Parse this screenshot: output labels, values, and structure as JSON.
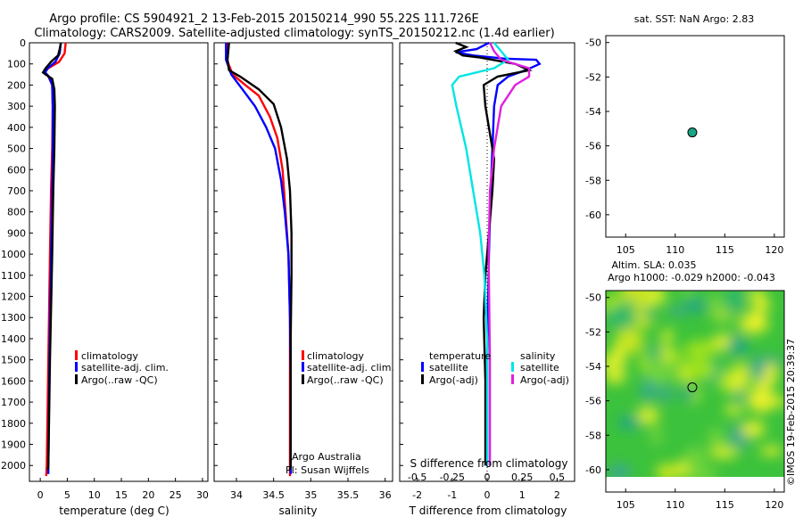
{
  "header": {
    "line1": "Argo profile: CS 5904921_2 13-Feb-2015 20150214_990 55.22S 111.726E",
    "line2": "Climatology: CARS2009. Satellite-adjusted climatology: synTS_20150212.nc (1.4d earlier)"
  },
  "colors": {
    "clim": "#ff0000",
    "sat": "#0000ff",
    "argo": "#000000",
    "sal_sat": "#00e5e5",
    "sal_argo": "#e020e0"
  },
  "chart_data": [
    {
      "type": "line",
      "id": "temperature",
      "xlabel": "temperature (deg C)",
      "ylabel": "",
      "xlim": [
        -2,
        31
      ],
      "ylim": [
        2075,
        0
      ],
      "xticks": [
        "0",
        "5",
        "10",
        "15",
        "20",
        "25",
        "30"
      ],
      "xtick_values": [
        0,
        5,
        10,
        15,
        20,
        25,
        30
      ],
      "yticks": [
        "0",
        "100",
        "200",
        "300",
        "400",
        "500",
        "600",
        "700",
        "800",
        "900",
        "1000",
        "1100",
        "1200",
        "1300",
        "1400",
        "1500",
        "1600",
        "1700",
        "1800",
        "1900",
        "2000"
      ],
      "ytick_values": [
        0,
        100,
        200,
        300,
        400,
        500,
        600,
        700,
        800,
        900,
        1000,
        1100,
        1200,
        1300,
        1400,
        1500,
        1600,
        1700,
        1800,
        1900,
        2000
      ],
      "legend": [
        "climatology",
        "satellite-adj. clim.",
        "Argo(..raw -QC)"
      ],
      "series": [
        {
          "name": "climatology",
          "color": "#ff0000",
          "points": [
            [
              4.7,
              0
            ],
            [
              4.5,
              50
            ],
            [
              3.5,
              90
            ],
            [
              1.5,
              120
            ],
            [
              0.8,
              140
            ],
            [
              1.5,
              160
            ],
            [
              2.2,
              200
            ],
            [
              2.3,
              300
            ],
            [
              2.2,
              500
            ],
            [
              2.0,
              700
            ],
            [
              1.8,
              1000
            ],
            [
              1.5,
              1500
            ],
            [
              1.2,
              2000
            ],
            [
              1.1,
              2050
            ]
          ]
        },
        {
          "name": "satellite-adj. clim.",
          "color": "#0000ff",
          "points": [
            [
              3.8,
              0
            ],
            [
              3.6,
              50
            ],
            [
              2.8,
              90
            ],
            [
              1.4,
              120
            ],
            [
              0.9,
              140
            ],
            [
              1.6,
              160
            ],
            [
              2.2,
              200
            ],
            [
              2.3,
              300
            ],
            [
              2.3,
              500
            ],
            [
              2.2,
              700
            ],
            [
              2.0,
              1000
            ],
            [
              1.7,
              1500
            ],
            [
              1.5,
              2000
            ],
            [
              1.5,
              2040
            ]
          ]
        },
        {
          "name": "Argo(..raw -QC)",
          "color": "#000000",
          "points": [
            [
              3.8,
              0
            ],
            [
              3.6,
              30
            ],
            [
              3.3,
              60
            ],
            [
              2.0,
              90
            ],
            [
              1.0,
              120
            ],
            [
              0.5,
              140
            ],
            [
              1.0,
              150
            ],
            [
              2.2,
              170
            ],
            [
              2.6,
              220
            ],
            [
              2.7,
              300
            ],
            [
              2.6,
              500
            ],
            [
              2.4,
              700
            ],
            [
              2.2,
              1000
            ],
            [
              1.8,
              1500
            ],
            [
              1.5,
              2000
            ],
            [
              1.4,
              2020
            ]
          ]
        }
      ]
    },
    {
      "type": "line",
      "id": "salinity",
      "xlabel": "salinity",
      "xlim": [
        33.7,
        36.1
      ],
      "ylim": [
        2075,
        0
      ],
      "xticks": [
        "34",
        "34.5",
        "35",
        "35.5",
        "36"
      ],
      "xtick_values": [
        34,
        34.5,
        35,
        35.5,
        36
      ],
      "legend": [
        "climatology",
        "satellite-adj. clim.",
        "Argo(..raw -QC)"
      ],
      "annotation": [
        "Argo Australia",
        "PI: Susan Wijffels"
      ],
      "series": [
        {
          "name": "climatology",
          "color": "#ff0000",
          "points": [
            [
              33.88,
              0
            ],
            [
              33.87,
              80
            ],
            [
              33.95,
              150
            ],
            [
              34.12,
              200
            ],
            [
              34.3,
              250
            ],
            [
              34.45,
              350
            ],
            [
              34.55,
              450
            ],
            [
              34.62,
              600
            ],
            [
              34.66,
              800
            ],
            [
              34.7,
              1000
            ],
            [
              34.72,
              1300
            ],
            [
              34.72,
              1600
            ],
            [
              34.72,
              2000
            ],
            [
              34.72,
              2050
            ]
          ]
        },
        {
          "name": "satellite-adj. clim.",
          "color": "#0000ff",
          "points": [
            [
              33.86,
              0
            ],
            [
              33.86,
              80
            ],
            [
              33.93,
              150
            ],
            [
              34.08,
              220
            ],
            [
              34.25,
              300
            ],
            [
              34.4,
              400
            ],
            [
              34.52,
              500
            ],
            [
              34.6,
              650
            ],
            [
              34.65,
              800
            ],
            [
              34.7,
              1000
            ],
            [
              34.72,
              1300
            ],
            [
              34.73,
              1600
            ],
            [
              34.73,
              2000
            ],
            [
              34.73,
              2040
            ]
          ]
        },
        {
          "name": "Argo(..raw -QC)",
          "color": "#000000",
          "points": [
            [
              33.9,
              0
            ],
            [
              33.88,
              80
            ],
            [
              33.9,
              130
            ],
            [
              34.05,
              160
            ],
            [
              34.3,
              220
            ],
            [
              34.5,
              290
            ],
            [
              34.6,
              400
            ],
            [
              34.68,
              550
            ],
            [
              34.72,
              700
            ],
            [
              34.74,
              900
            ],
            [
              34.74,
              1100
            ],
            [
              34.73,
              1400
            ],
            [
              34.73,
              1700
            ],
            [
              34.73,
              2000
            ],
            [
              34.72,
              2020
            ]
          ]
        }
      ]
    },
    {
      "type": "line",
      "id": "differences",
      "xlabel": "T difference from climatology",
      "xlabel_top": "S difference from climatology",
      "xlim": [
        -2.5,
        2.5
      ],
      "ylim": [
        2075,
        0
      ],
      "xticks": [
        "-2",
        "-1",
        "0",
        "1",
        "2"
      ],
      "xtick_values": [
        -2,
        -1,
        0,
        1,
        2
      ],
      "s_ticks": [
        "-0.5",
        "-0.25",
        "0",
        "0.25",
        "0.5"
      ],
      "s_tick_values": [
        -0.5,
        -0.25,
        0,
        0.25,
        0.5
      ],
      "legend_titles": [
        "temperature",
        "salinity"
      ],
      "legend": [
        "satellite",
        "Argo(-adj)",
        "satellite",
        "Argo(-adj)"
      ],
      "series": [
        {
          "name": "temperature satellite",
          "color": "#0000ff",
          "points": [
            [
              0.05,
              0
            ],
            [
              -0.3,
              30
            ],
            [
              -0.9,
              45
            ],
            [
              -0.4,
              60
            ],
            [
              0.5,
              75
            ],
            [
              1.4,
              80
            ],
            [
              1.5,
              100
            ],
            [
              1.1,
              130
            ],
            [
              0.6,
              160
            ],
            [
              0.3,
              200
            ],
            [
              0.2,
              300
            ],
            [
              0.15,
              500
            ],
            [
              0.1,
              700
            ],
            [
              0.05,
              1000
            ],
            [
              0.0,
              1500
            ],
            [
              0.0,
              2000
            ]
          ]
        },
        {
          "name": "temperature Argo",
          "color": "#000000",
          "points": [
            [
              -0.9,
              0
            ],
            [
              -0.6,
              20
            ],
            [
              -0.9,
              40
            ],
            [
              -0.7,
              60
            ],
            [
              -0.2,
              70
            ],
            [
              0.8,
              100
            ],
            [
              1.2,
              130
            ],
            [
              0.3,
              160
            ],
            [
              -0.1,
              200
            ],
            [
              -0.05,
              300
            ],
            [
              0.1,
              450
            ],
            [
              0.2,
              550
            ],
            [
              0.15,
              700
            ],
            [
              0.05,
              900
            ],
            [
              -0.05,
              1100
            ],
            [
              -0.1,
              1300
            ],
            [
              -0.05,
              1600
            ],
            [
              -0.05,
              2000
            ]
          ]
        },
        {
          "name": "salinity satellite",
          "color": "#00e5e5",
          "points": [
            [
              0.05,
              0
            ],
            [
              0.1,
              40
            ],
            [
              0.15,
              80
            ],
            [
              0.05,
              120
            ],
            [
              -0.2,
              160
            ],
            [
              -0.25,
              200
            ],
            [
              -0.22,
              300
            ],
            [
              -0.15,
              500
            ],
            [
              -0.1,
              700
            ],
            [
              -0.05,
              900
            ],
            [
              -0.02,
              1100
            ],
            [
              0.0,
              1400
            ],
            [
              0.0,
              1700
            ],
            [
              0.0,
              2000
            ]
          ]
        },
        {
          "name": "salinity Argo",
          "color": "#e020e0",
          "points": [
            [
              0.02,
              0
            ],
            [
              0.05,
              40
            ],
            [
              0.1,
              80
            ],
            [
              0.3,
              120
            ],
            [
              0.3,
              160
            ],
            [
              0.2,
              200
            ],
            [
              0.1,
              300
            ],
            [
              0.05,
              500
            ],
            [
              0.02,
              700
            ],
            [
              0.01,
              1000
            ],
            [
              0.02,
              1500
            ],
            [
              0.02,
              2000
            ]
          ]
        }
      ]
    },
    {
      "type": "scatter",
      "id": "location",
      "title": "sat. SST: NaN Argo: 2.83",
      "xlim": [
        103,
        121
      ],
      "ylim": [
        -61.3,
        -49.6
      ],
      "xticks": [
        "105",
        "110",
        "115",
        "120"
      ],
      "xtick_values": [
        105,
        110,
        115,
        120
      ],
      "yticks": [
        "-50",
        "-52",
        "-54",
        "-56",
        "-58",
        "-60"
      ],
      "ytick_values": [
        -50,
        -52,
        -54,
        -56,
        -58,
        -60
      ],
      "point": {
        "lon": 111.726,
        "lat": -55.22
      }
    },
    {
      "type": "heatmap",
      "id": "altimetry",
      "title_line1": "Altim. SLA: 0.035",
      "title_line2": "Argo h1000: -0.029 h2000: -0.043",
      "xlim": [
        103,
        121
      ],
      "ylim": [
        -61.3,
        -49.6
      ],
      "data_lat_min": -60,
      "xticks": [
        "105",
        "110",
        "115",
        "120"
      ],
      "xtick_values": [
        105,
        110,
        115,
        120
      ],
      "yticks": [
        "-50",
        "-52",
        "-54",
        "-56",
        "-58",
        "-60"
      ],
      "ytick_values": [
        -50,
        -52,
        -54,
        -56,
        -58,
        -60
      ],
      "point": {
        "lon": 111.726,
        "lat": -55.22
      }
    }
  ],
  "credit": "©IMOS 19-Feb-2015 20:39:37"
}
